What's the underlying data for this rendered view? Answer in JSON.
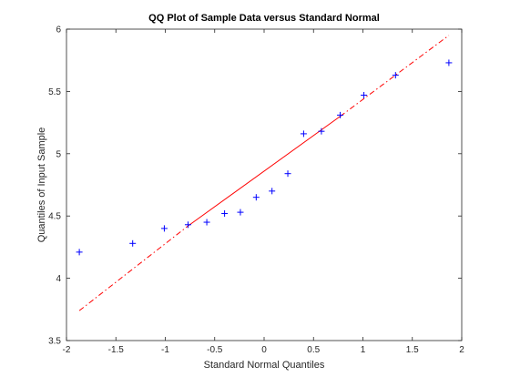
{
  "chart_data": {
    "type": "scatter",
    "title": "QQ Plot of Sample Data versus Standard Normal",
    "xlabel": "Standard Normal Quantiles",
    "ylabel": "Quantiles of Input Sample",
    "xlim": [
      -2,
      2
    ],
    "ylim": [
      3.5,
      6
    ],
    "x_ticks": [
      -2,
      -1.5,
      -1,
      -0.5,
      0,
      0.5,
      1,
      1.5,
      2
    ],
    "x_tick_labels": [
      "-2",
      "-1.5",
      "-1",
      "-0.5",
      "0",
      "0.5",
      "1",
      "1.5",
      "2"
    ],
    "y_ticks": [
      3.5,
      4,
      4.5,
      5,
      5.5,
      6
    ],
    "y_tick_labels": [
      "3.5",
      "4",
      "4.5",
      "5",
      "5.5",
      "6"
    ],
    "grid": false,
    "legend": "none",
    "series": [
      {
        "type": "scatter",
        "marker": "plus",
        "color": "#0000ff",
        "x": [
          -1.87,
          -1.33,
          -1.01,
          -0.77,
          -0.58,
          -0.4,
          -0.24,
          -0.08,
          0.08,
          0.24,
          0.4,
          0.58,
          0.77,
          1.01,
          1.33,
          1.87
        ],
        "y": [
          4.21,
          4.28,
          4.4,
          4.43,
          4.45,
          4.52,
          4.53,
          4.65,
          4.7,
          4.84,
          5.16,
          5.18,
          5.31,
          5.47,
          5.63,
          5.73
        ]
      },
      {
        "type": "line",
        "style": "solid",
        "color": "#ff0000",
        "x": [
          -0.77,
          0.77
        ],
        "y": [
          4.42,
          5.3
        ]
      },
      {
        "type": "line",
        "style": "dashdot",
        "color": "#ff0000",
        "x": [
          -1.87,
          -0.77
        ],
        "y": [
          3.74,
          4.42
        ]
      },
      {
        "type": "line",
        "style": "dashdot",
        "color": "#ff0000",
        "x": [
          0.77,
          1.87
        ],
        "y": [
          5.3,
          5.95
        ]
      }
    ]
  }
}
